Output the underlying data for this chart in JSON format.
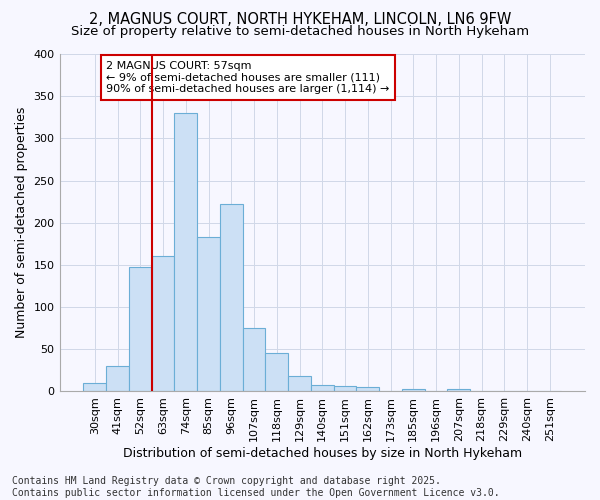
{
  "title": "2, MAGNUS COURT, NORTH HYKEHAM, LINCOLN, LN6 9FW",
  "subtitle": "Size of property relative to semi-detached houses in North Hykeham",
  "xlabel": "Distribution of semi-detached houses by size in North Hykeham",
  "ylabel": "Number of semi-detached properties",
  "categories": [
    "30sqm",
    "41sqm",
    "52sqm",
    "63sqm",
    "74sqm",
    "85sqm",
    "96sqm",
    "107sqm",
    "118sqm",
    "129sqm",
    "140sqm",
    "151sqm",
    "162sqm",
    "173sqm",
    "185sqm",
    "196sqm",
    "207sqm",
    "218sqm",
    "229sqm",
    "240sqm",
    "251sqm"
  ],
  "values": [
    10,
    30,
    148,
    160,
    330,
    183,
    222,
    75,
    45,
    18,
    8,
    7,
    5,
    0,
    3,
    0,
    3,
    0,
    0,
    0,
    0
  ],
  "bar_color": "#cce0f5",
  "bar_edge_color": "#6baed6",
  "vline_x": 2.5,
  "annotation_text": "2 MAGNUS COURT: 57sqm\n← 9% of semi-detached houses are smaller (111)\n90% of semi-detached houses are larger (1,114) →",
  "annotation_box_color": "#ffffff",
  "annotation_box_edge": "#cc0000",
  "vline_color": "#cc0000",
  "footer_line1": "Contains HM Land Registry data © Crown copyright and database right 2025.",
  "footer_line2": "Contains public sector information licensed under the Open Government Licence v3.0.",
  "ylim": [
    0,
    400
  ],
  "yticks": [
    0,
    50,
    100,
    150,
    200,
    250,
    300,
    350,
    400
  ],
  "background_color": "#f7f7ff",
  "grid_color": "#d0d8e8",
  "title_fontsize": 10.5,
  "subtitle_fontsize": 9.5,
  "axis_label_fontsize": 9,
  "tick_label_fontsize": 8,
  "footer_fontsize": 7
}
